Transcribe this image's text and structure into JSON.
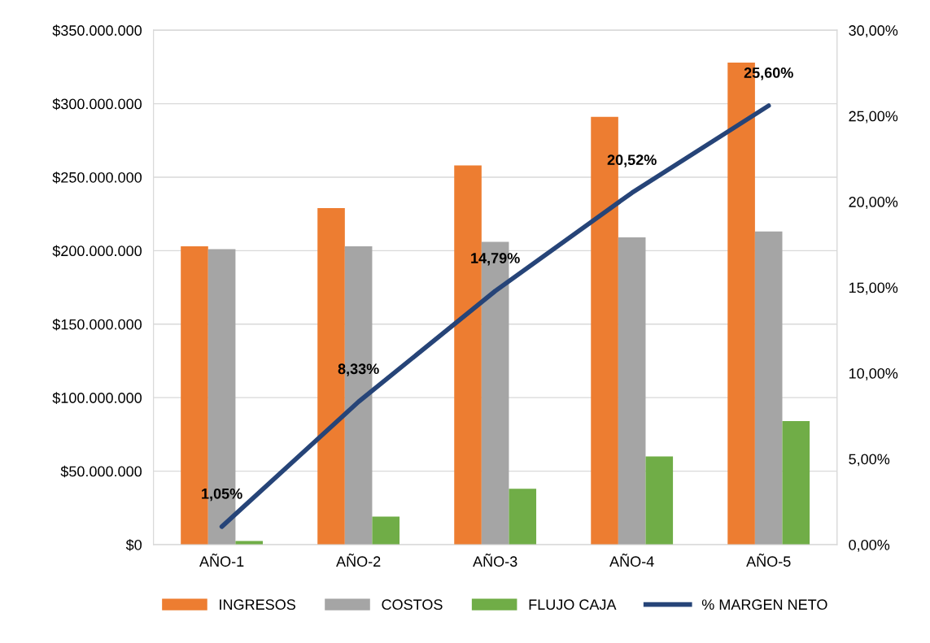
{
  "chart_data": {
    "type": "bar",
    "categories": [
      "AÑO-1",
      "AÑO-2",
      "AÑO-3",
      "AÑO-4",
      "AÑO-5"
    ],
    "series": [
      {
        "name": "INGRESOS",
        "color": "#ed7d31",
        "values": [
          203000000,
          229000000,
          258000000,
          291000000,
          328000000
        ]
      },
      {
        "name": "COSTOS",
        "color": "#a5a5a5",
        "values": [
          201000000,
          203000000,
          206000000,
          209000000,
          213000000
        ]
      },
      {
        "name": "FLUJO CAJA",
        "color": "#70ad47",
        "values": [
          2500000,
          19000000,
          38000000,
          60000000,
          84000000
        ]
      },
      {
        "name": "% MARGEN NETO",
        "type": "line",
        "axis": "y2",
        "color": "#264478",
        "values": [
          1.05,
          8.33,
          14.79,
          20.52,
          25.6
        ],
        "value_labels": [
          "1,05%",
          "8,33%",
          "14,79%",
          "20,52%",
          "25,60%"
        ]
      }
    ],
    "ylim": [
      0,
      350000000
    ],
    "yticks": [
      {
        "value": 0,
        "label": "$0"
      },
      {
        "value": 50000000,
        "label": "$50.000.000"
      },
      {
        "value": 100000000,
        "label": "$100.000.000"
      },
      {
        "value": 150000000,
        "label": "$150.000.000"
      },
      {
        "value": 200000000,
        "label": "$200.000.000"
      },
      {
        "value": 250000000,
        "label": "$250.000.000"
      },
      {
        "value": 300000000,
        "label": "$300.000.000"
      },
      {
        "value": 350000000,
        "label": "$350.000.000"
      }
    ],
    "y2lim": [
      0,
      30
    ],
    "y2ticks": [
      {
        "value": 0,
        "label": "0,00%"
      },
      {
        "value": 5,
        "label": "5,00%"
      },
      {
        "value": 10,
        "label": "10,00%"
      },
      {
        "value": 15,
        "label": "15,00%"
      },
      {
        "value": 20,
        "label": "20,00%"
      },
      {
        "value": 25,
        "label": "25,00%"
      },
      {
        "value": 30,
        "label": "30,00%"
      }
    ],
    "grid": "y",
    "legend": "bottom"
  }
}
